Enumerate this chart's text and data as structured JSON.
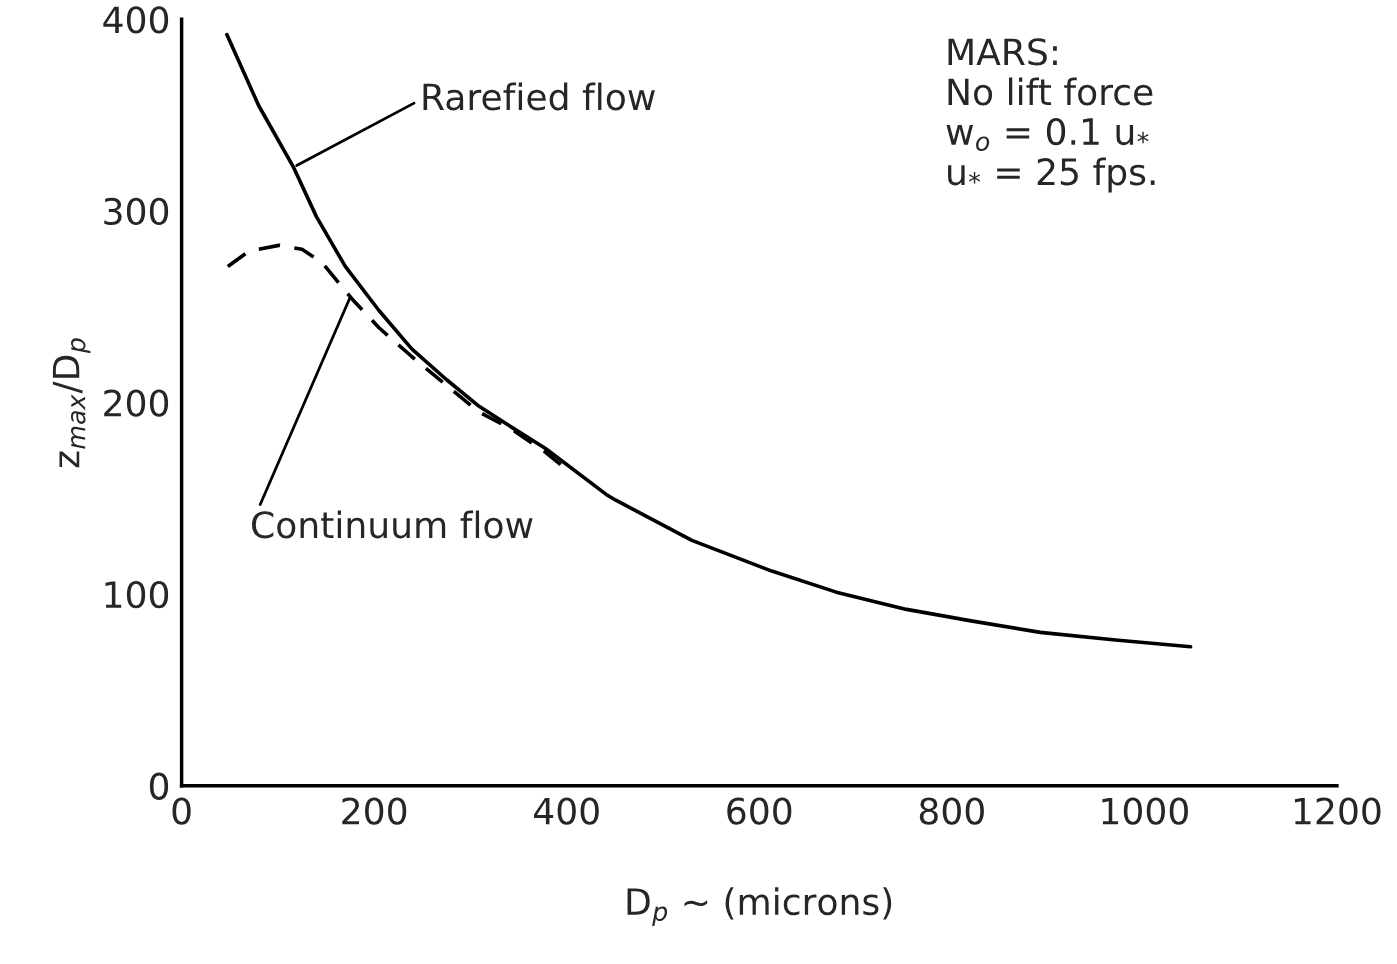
{
  "chart_data": {
    "type": "line",
    "xlabel": "D$_{p}$ ~ (microns)",
    "ylabel": "z$_{max}$/D$_{p}$",
    "xlim": [
      0,
      1200
    ],
    "xticks": [
      0,
      200,
      400,
      600,
      800,
      1000,
      1200
    ],
    "ylim": [
      0,
      400
    ],
    "yticks": [
      0,
      100,
      200,
      300,
      400
    ],
    "grid": false,
    "legend": false,
    "marker": "none",
    "series": [
      {
        "color": "#000000",
        "line_style": "solid",
        "x": [
          47,
          80,
          116,
          140,
          170,
          205,
          239,
          275,
          309,
          343,
          378,
          441,
          451,
          530,
          613,
          680,
          753,
          820,
          892,
          970,
          1048
        ],
        "values": [
          392,
          355,
          323,
          297,
          271,
          248,
          228,
          212,
          198,
          187,
          176,
          152,
          149,
          128,
          112,
          101,
          92,
          86,
          80,
          76,
          72.5
        ]
      },
      {
        "color": "#000000",
        "line_style": "dashed",
        "x": [
          48,
          70,
          101,
          125,
          146,
          177,
          205,
          239,
          275,
          309,
          343,
          378,
          400
        ],
        "values": [
          271,
          279,
          282,
          280,
          273,
          254,
          239,
          224,
          209,
          195,
          186,
          174,
          165
        ]
      }
    ],
    "annotations": [
      {
        "text": "Rarefied flow",
        "x": 117,
        "y": 323
      },
      {
        "text": "Continuum flow",
        "x": 176,
        "y": 256
      },
      "MARS:",
      "No lift force",
      "w$_{o}$ = 0.1 u$_{*}$",
      "u$_{*}$ = 25 fps."
    ]
  }
}
